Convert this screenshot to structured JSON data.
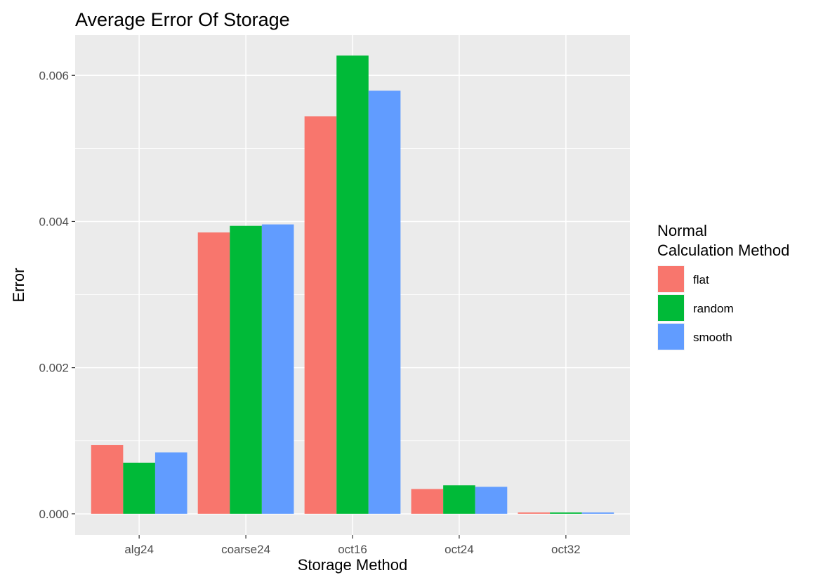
{
  "chart_data": {
    "type": "bar",
    "title": "Average Error Of Storage",
    "xlabel": "Storage Method",
    "ylabel": "Error",
    "categories": [
      "alg24",
      "coarse24",
      "oct16",
      "oct24",
      "oct32"
    ],
    "ylim": [
      -0.00029,
      0.00655
    ],
    "yticks": [
      0.0,
      0.002,
      0.004,
      0.006
    ],
    "ytick_labels": [
      "0.000",
      "0.002",
      "0.004",
      "0.006"
    ],
    "grid": true,
    "legend": {
      "title_lines": [
        "Normal",
        "Calculation Method"
      ],
      "position": "right"
    },
    "series": [
      {
        "name": "flat",
        "color": "#F8766D",
        "values": [
          0.00094,
          0.00385,
          0.00544,
          0.00034,
          2e-05
        ]
      },
      {
        "name": "random",
        "color": "#00BA38",
        "values": [
          0.0007,
          0.00394,
          0.00627,
          0.00039,
          2e-05
        ]
      },
      {
        "name": "smooth",
        "color": "#619CFF",
        "values": [
          0.00084,
          0.00396,
          0.00579,
          0.00037,
          2e-05
        ]
      }
    ]
  }
}
